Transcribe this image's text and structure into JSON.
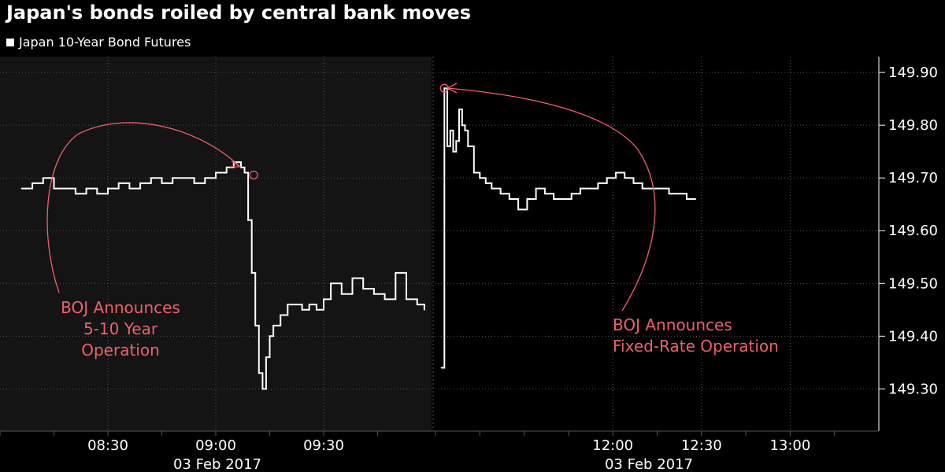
{
  "chart_data": {
    "type": "line",
    "title": "Japan's bonds roiled by central bank moves",
    "legend": {
      "position": "top-left",
      "entries": [
        "Japan 10-Year Bond Futures"
      ]
    },
    "series": [
      {
        "name": "Japan 10-Year Bond Futures",
        "color": "#ffffff",
        "segments": [
          {
            "session": "morning",
            "x": [
              "08:06",
              "08:09",
              "08:12",
              "08:15",
              "08:18",
              "08:21",
              "08:24",
              "08:27",
              "08:30",
              "08:33",
              "08:36",
              "08:39",
              "08:42",
              "08:45",
              "08:48",
              "08:51",
              "08:54",
              "08:57",
              "09:00",
              "09:03",
              "09:05",
              "09:07",
              "09:08",
              "09:09",
              "09:10",
              "09:11",
              "09:12",
              "09:13",
              "09:14",
              "09:15",
              "09:16",
              "09:18",
              "09:20",
              "09:22",
              "09:24",
              "09:26",
              "09:28",
              "09:30",
              "09:32",
              "09:35",
              "09:38",
              "09:41",
              "09:44",
              "09:47",
              "09:50",
              "09:53",
              "09:56",
              "09:58"
            ],
            "y": [
              149.68,
              149.69,
              149.7,
              149.68,
              149.68,
              149.67,
              149.68,
              149.67,
              149.68,
              149.69,
              149.68,
              149.69,
              149.7,
              149.69,
              149.7,
              149.7,
              149.69,
              149.7,
              149.71,
              149.72,
              149.73,
              149.72,
              149.71,
              149.62,
              149.52,
              149.42,
              149.33,
              149.3,
              149.36,
              149.4,
              149.42,
              149.44,
              149.46,
              149.46,
              149.45,
              149.46,
              149.45,
              149.47,
              149.5,
              149.48,
              149.51,
              149.49,
              149.48,
              149.47,
              149.52,
              149.47,
              149.46,
              149.45
            ]
          },
          {
            "session": "afternoon",
            "x": [
              "11:02",
              "11:03",
              "11:04",
              "11:05",
              "11:06",
              "11:07",
              "11:08",
              "11:09",
              "11:10",
              "11:11",
              "11:13",
              "11:15",
              "11:17",
              "11:19",
              "11:22",
              "11:25",
              "11:28",
              "11:31",
              "11:34",
              "11:37",
              "11:40",
              "11:43",
              "11:46",
              "11:49",
              "11:52",
              "11:55",
              "11:58",
              "12:01",
              "12:04",
              "12:07",
              "12:10",
              "12:13",
              "12:16",
              "12:19",
              "12:22",
              "12:25",
              "12:28"
            ],
            "y": [
              149.34,
              149.87,
              149.76,
              149.79,
              149.75,
              149.77,
              149.83,
              149.8,
              149.79,
              149.76,
              149.71,
              149.7,
              149.69,
              149.68,
              149.67,
              149.66,
              149.64,
              149.66,
              149.68,
              149.67,
              149.66,
              149.66,
              149.67,
              149.68,
              149.68,
              149.69,
              149.7,
              149.71,
              149.7,
              149.69,
              149.68,
              149.68,
              149.68,
              149.67,
              149.67,
              149.66,
              149.66
            ]
          }
        ]
      }
    ],
    "yaxis": {
      "ticks": [
        "149.30",
        "149.40",
        "149.50",
        "149.60",
        "149.70",
        "149.80",
        "149.90"
      ],
      "ylim": [
        149.22,
        149.93
      ],
      "position": "right"
    },
    "xaxis_panels": [
      {
        "range": [
          "08:00",
          "10:00"
        ],
        "ticks": [
          "08:30",
          "09:00",
          "09:30"
        ],
        "date_label": "03 Feb 2017",
        "shaded": true
      },
      {
        "range": [
          "11:00",
          "13:30"
        ],
        "ticks": [
          "12:00",
          "12:30",
          "13:00"
        ],
        "date_label": "03 Feb 2017",
        "shaded": false
      }
    ],
    "grid": true,
    "annotations": [
      {
        "lines": [
          "BOJ Announces",
          "5-10 Year",
          "Operation"
        ],
        "target_x": "09:09",
        "target_y": 149.71,
        "color": "#f0606a"
      },
      {
        "lines": [
          "BOJ Announces",
          "Fixed-Rate Operation"
        ],
        "target_x": "11:03",
        "target_y": 149.87,
        "color": "#f0606a"
      }
    ]
  },
  "colors": {
    "background": "#000000",
    "panel_shade": "#141414",
    "grid": "#555555",
    "line": "#ffffff",
    "annotation": "#f0606a",
    "axis_text": "#ffffff"
  }
}
